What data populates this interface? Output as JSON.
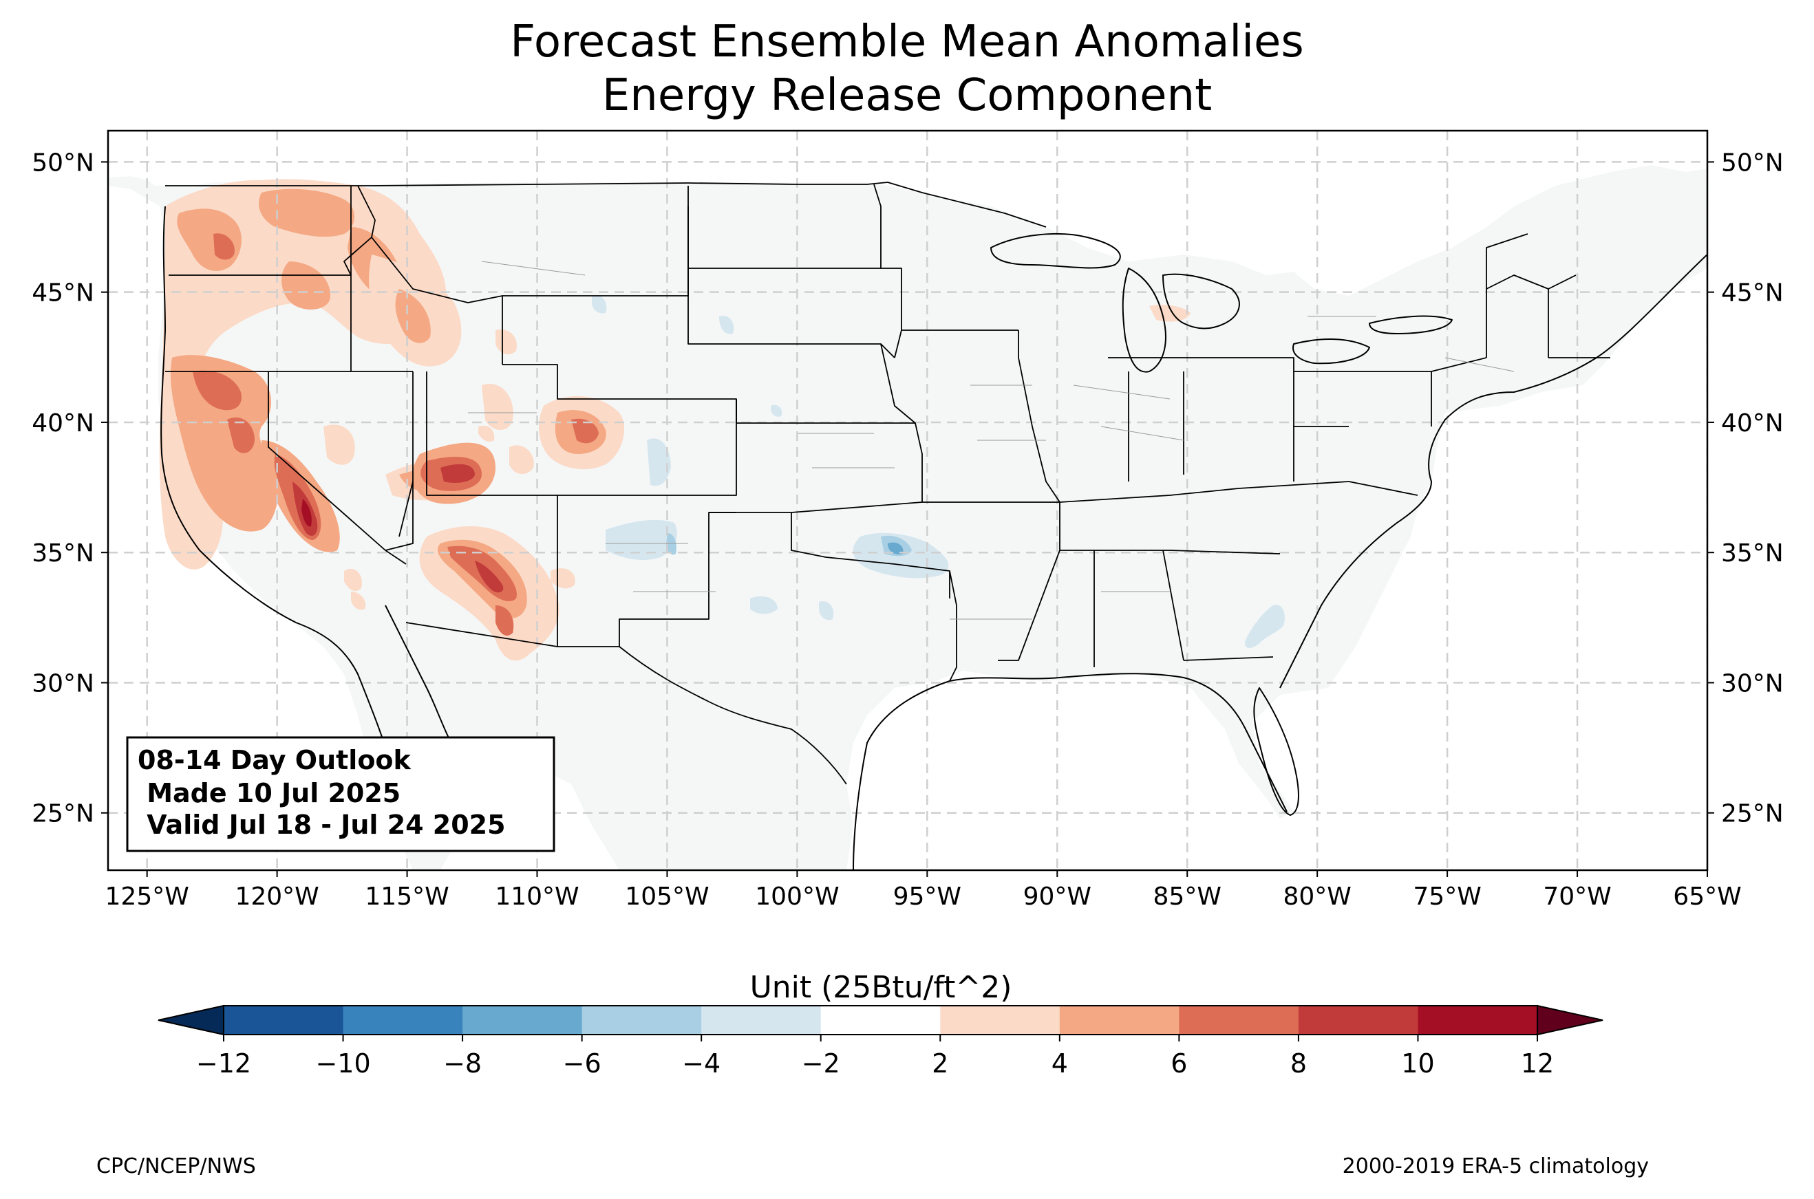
{
  "title_line1": "Forecast Ensemble Mean Anomalies",
  "title_line2": "Energy Release Component",
  "map": {
    "lon_range": [
      -126.5,
      -65
    ],
    "lat_range": [
      22.8,
      51.2
    ],
    "lon_ticks": [
      "125°W",
      "120°W",
      "115°W",
      "110°W",
      "105°W",
      "100°W",
      "95°W",
      "90°W",
      "85°W",
      "80°W",
      "75°W",
      "70°W",
      "65°W"
    ],
    "lat_ticks": [
      "50°N",
      "45°N",
      "40°N",
      "35°N",
      "30°N",
      "25°N"
    ],
    "background_color": "#f5f7f7"
  },
  "info_box": {
    "line1": "08-14 Day Outlook",
    "line2": " Made 10 Jul 2025",
    "line3": " Valid Jul 18 - Jul 24 2025"
  },
  "colorbar": {
    "label": "Unit (25Btu/ft^2)",
    "ticks": [
      "−12",
      "−10",
      "−8",
      "−6",
      "−4",
      "−2",
      "2",
      "4",
      "6",
      "8",
      "10",
      "12"
    ],
    "colors": [
      "#1a5697",
      "#3883bc",
      "#67a9cf",
      "#a8cfe4",
      "#d6e6ef",
      "#ffffff",
      "#fbdac7",
      "#f4a883",
      "#de6d56",
      "#c23b3b",
      "#a40f25"
    ],
    "under_color": "#062a57",
    "over_color": "#61001c"
  },
  "anomaly_colors": {
    "pos_light": "#fbdac7",
    "pos_med": "#f4a883",
    "pos_strong": "#de6d56",
    "pos_vstrong": "#c23b3b",
    "pos_max": "#a40f25",
    "neg_light": "#d6e6ef",
    "neg_med": "#a8cfe4",
    "neg_strong": "#67a9cf"
  },
  "footer_left": "CPC/NCEP/NWS",
  "footer_right": "2000-2019 ERA-5 climatology"
}
